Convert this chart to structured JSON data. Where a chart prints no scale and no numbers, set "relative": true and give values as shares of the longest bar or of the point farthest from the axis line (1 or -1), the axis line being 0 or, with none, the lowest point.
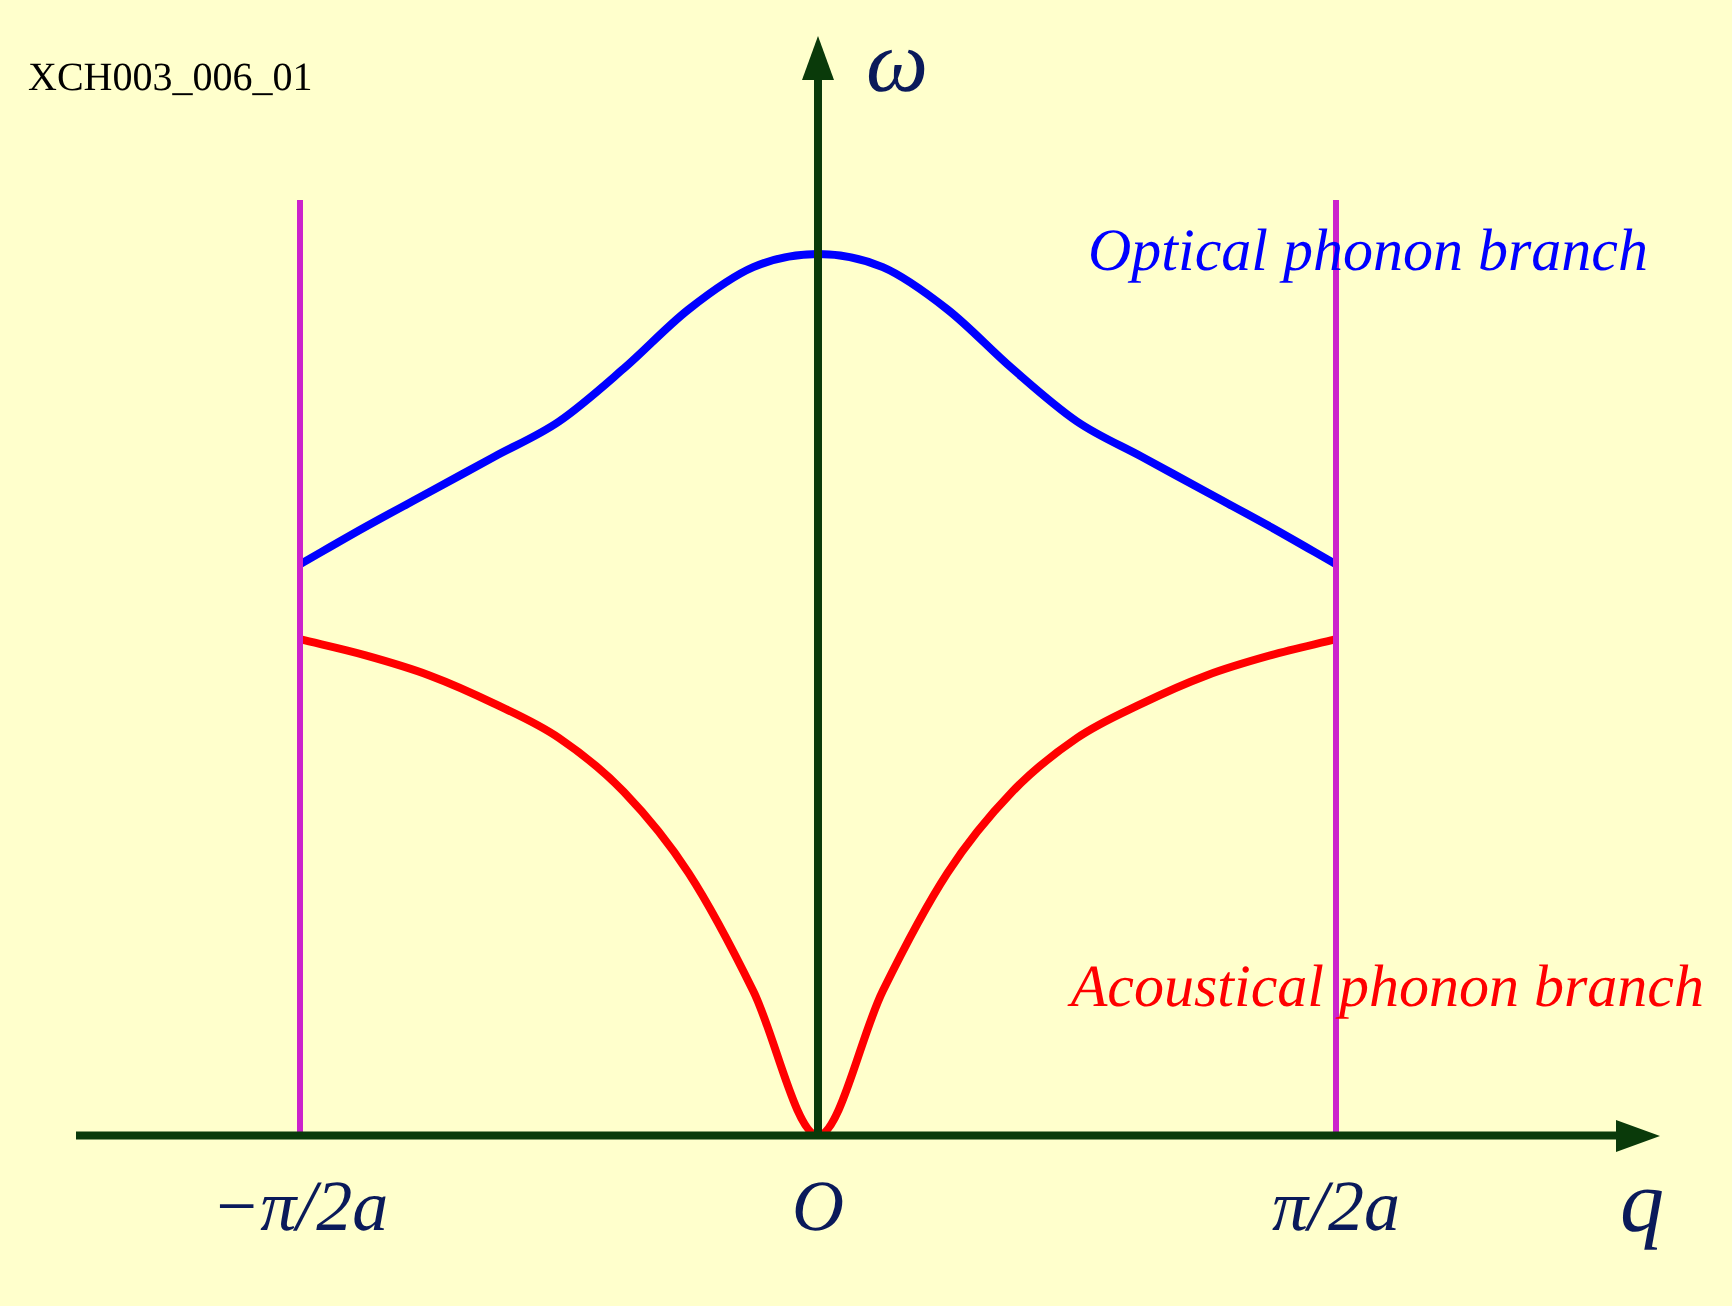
{
  "chart_data": {
    "type": "line",
    "relative": true,
    "xlabel": "q",
    "ylabel": "ω",
    "annotations": [
      "XCH003_006_01"
    ],
    "categories": [
      "−π/2a",
      null,
      null,
      null,
      null,
      null,
      null,
      null,
      "O",
      null,
      null,
      null,
      null,
      null,
      null,
      null,
      "π/2a"
    ],
    "ref_lines": [
      {
        "axis": "x",
        "value": "−π/2a",
        "label": null,
        "color": "#cc22cc"
      },
      {
        "axis": "x",
        "value": "π/2a",
        "label": null,
        "color": "#cc22cc"
      }
    ],
    "grid": false,
    "legend": false,
    "marker": "none",
    "line_style": "solid",
    "series": [
      {
        "name": "Optical phonon branch",
        "color": "#0000ff",
        "values": [
          0.648,
          0.69,
          0.73,
          0.77,
          0.81,
          0.87,
          0.937,
          0.985,
          1,
          0.985,
          0.937,
          0.87,
          0.81,
          0.77,
          0.73,
          0.69,
          0.648
        ]
      },
      {
        "name": "Acoustical phonon branch",
        "color": "#ff0000",
        "values": [
          0.563,
          0.545,
          0.522,
          0.49,
          0.451,
          0.39,
          0.298,
          0.164,
          0,
          0.164,
          0.298,
          0.39,
          0.451,
          0.49,
          0.522,
          0.545,
          0.563
        ]
      }
    ]
  }
}
